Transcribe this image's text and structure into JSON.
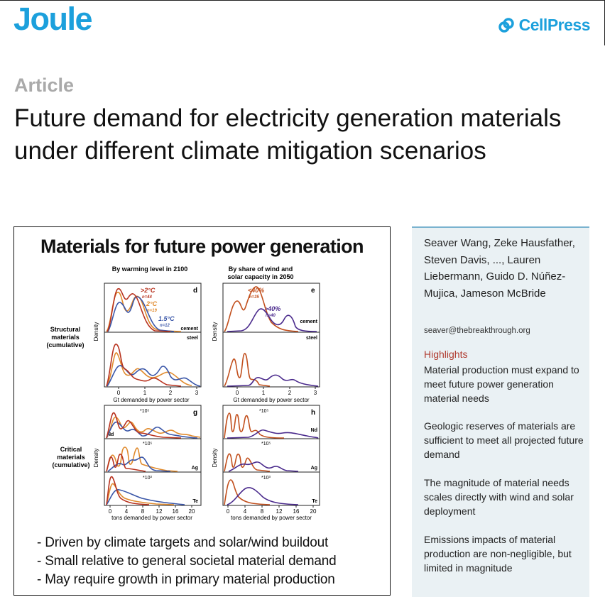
{
  "header": {
    "journal": "Joule",
    "publisher": "CellPress"
  },
  "article": {
    "type": "Article",
    "title": "Future demand for electricity generation materials under different climate mitigation scenarios"
  },
  "graphical_abstract": {
    "title": "Materials for future power generation",
    "col_left_title_1": "By warming level in 2100",
    "col_right_title_1": "By share of wind and",
    "col_right_title_2": "solar capacity in 2050",
    "row_structural_1": "Structural",
    "row_structural_2": "materials",
    "row_structural_3": "(cumulative)",
    "row_critical_1": "Critical",
    "row_critical_2": "materials",
    "row_critical_3": "(cumulative)",
    "y_axis_label": "Density",
    "x_label_structural": "Gt demanded by power sector",
    "x_label_critical": "tons demanded by power sector",
    "panel_d": "d",
    "panel_e": "e",
    "panel_g": "g",
    "panel_h": "h",
    "label_cement": "cement",
    "label_steel": "steel",
    "label_nd": "Nd",
    "label_ag": "Ag",
    "label_te": "Te",
    "mult_nd": "*10⁵",
    "mult_ag": "*10⁵",
    "mult_te": "*10³",
    "legend_left": [
      {
        "label": ">2°C",
        "n": "n=44",
        "color": "#b8321e"
      },
      {
        "label": "2°C",
        "n": "n=19",
        "color": "#e08a2c"
      },
      {
        "label": "1.5°C",
        "n": "n=12",
        "color": "#3a56a8"
      }
    ],
    "legend_right": [
      {
        "label": "<40%",
        "n": "n=35",
        "color": "#c2501e"
      },
      {
        "label": ">40%",
        "n": "n=40",
        "color": "#4a2a8c"
      }
    ],
    "ticks_structural": [
      "0",
      "1",
      "2",
      "3"
    ],
    "ticks_critical": [
      "0",
      "4",
      "8",
      "12",
      "16",
      "20"
    ],
    "bullets": [
      "- Driven by climate targets and solar/wind buildout",
      "- Small relative to general societal material demand",
      "- May require growth in primary material production"
    ]
  },
  "sidebar": {
    "authors": "Seaver Wang, Zeke Hausfather, Steven Davis, ..., Lauren Liebermann, Guido D. Núñez-Mujica, Jameson McBride",
    "email": "seaver@thebreakthrough.org",
    "highlights_heading": "Highlights",
    "highlights": [
      "Material production must expand to meet future power generation material needs",
      "Geologic reserves of materials are sufficient to meet all projected future demand",
      "The magnitude of material needs scales directly with wind and solar deployment",
      "Emissions impacts of material production are non-negligible, but limited in magnitude"
    ]
  },
  "colors": {
    "brand": "#1ca0dc",
    "highlight_heading": "#b03a2e",
    "sidebar_bg": "#eaf1f4"
  }
}
